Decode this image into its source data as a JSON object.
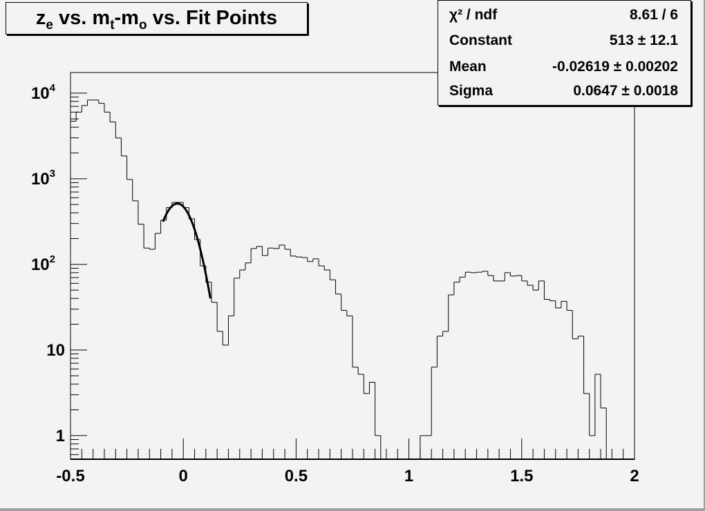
{
  "title": {
    "parts": [
      "z",
      "e",
      " vs. m",
      "t",
      "-m",
      "o",
      " vs. Fit Points"
    ]
  },
  "stats": {
    "rows": [
      {
        "label": "χ² / ndf",
        "value": "8.61 / 6"
      },
      {
        "label": "Constant",
        "value": "513 ± 12.1"
      },
      {
        "label": "Mean",
        "value": "-0.02619 ± 0.00202"
      },
      {
        "label": "Sigma",
        "value": "0.0647 ± 0.0018"
      }
    ]
  },
  "chart_data": {
    "type": "histogram",
    "xlim": [
      -0.5,
      2.0
    ],
    "ylim": [
      0.53,
      17400
    ],
    "yscale": "log",
    "bin_width": 0.025,
    "x_ticks": [
      "-0.5",
      "0",
      "0.5",
      "1",
      "1.5",
      "2"
    ],
    "y_ticks": [
      "1",
      "10",
      "10^2",
      "10^3",
      "10^4"
    ],
    "grid": false,
    "values": [
      4700,
      6000,
      7160,
      8300,
      8300,
      7600,
      6000,
      4600,
      2990,
      1845,
      980,
      552,
      294,
      155,
      150,
      230,
      328,
      460,
      530,
      530,
      460,
      340,
      195,
      96,
      62,
      36,
      16.5,
      11.4,
      25,
      69,
      86,
      104,
      153,
      162,
      127,
      155,
      153,
      168,
      150,
      125,
      122,
      120,
      108,
      116,
      96,
      86,
      66,
      45,
      29,
      25,
      6.3,
      5.2,
      3.1,
      4.2,
      1,
      0,
      0,
      0,
      0,
      0,
      0,
      0,
      1,
      1,
      6.3,
      14.5,
      16.5,
      44,
      62,
      71,
      81,
      80,
      81,
      83,
      74,
      64,
      64,
      80,
      73,
      74,
      64,
      57,
      50,
      64,
      39,
      37.5,
      31,
      37,
      29,
      13.5,
      14.5,
      3.1,
      1,
      5.2,
      2.1,
      0,
      0,
      0,
      0,
      0
    ],
    "fit": {
      "function": "gaus",
      "constant": 513,
      "mean": -0.02619,
      "sigma": 0.0647,
      "range": [
        -0.09,
        0.12
      ]
    }
  }
}
